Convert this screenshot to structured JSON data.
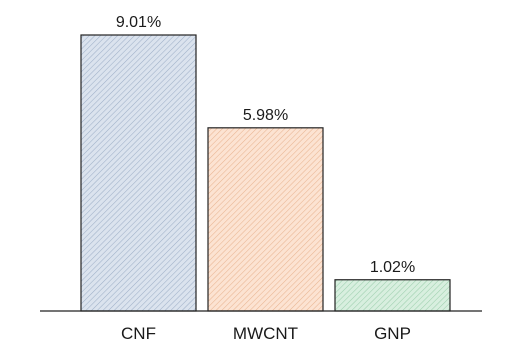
{
  "chart_data": {
    "type": "bar",
    "categories": [
      "CNF",
      "MWCNT",
      "GNP"
    ],
    "values": [
      9.01,
      5.98,
      1.02
    ],
    "data_labels": [
      "9.01%",
      "5.98%",
      "1.02%"
    ],
    "title": "",
    "xlabel": "",
    "ylabel": "",
    "ylim": [
      0,
      9.01
    ],
    "grid": false,
    "legend": "none",
    "bar_fills": [
      "#dbe3ee",
      "#fce3d2",
      "#d8efdf"
    ],
    "hatch_colors": [
      "#9fb0c8",
      "#e9b592",
      "#9ccfad"
    ],
    "bar_stroke": "#222222"
  }
}
